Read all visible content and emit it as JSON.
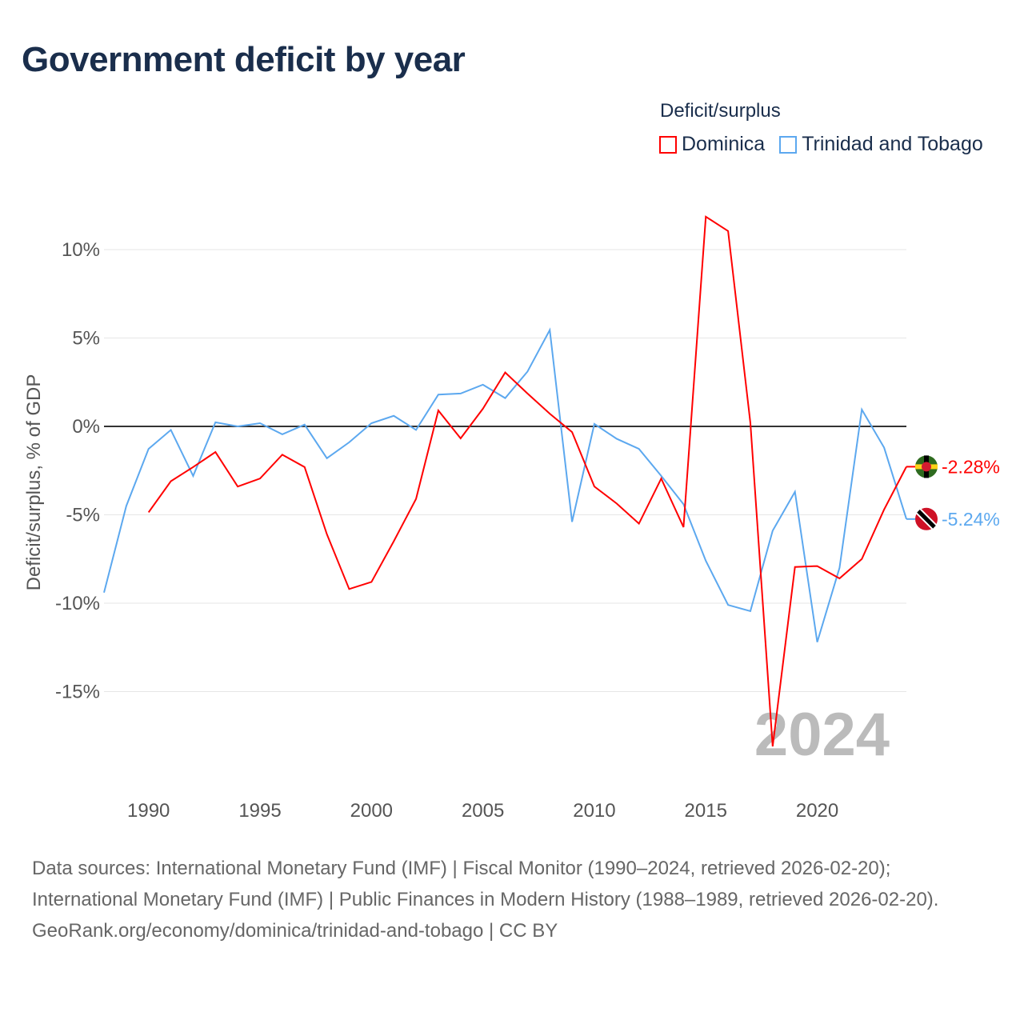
{
  "title": "Government deficit by year",
  "legend": {
    "title": "Deficit/surplus",
    "items": [
      "Dominica",
      "Trinidad and Tobago"
    ]
  },
  "footer": {
    "sources": "Data sources: International Monetary Fund (IMF) | Fiscal Monitor (1990–2024, retrieved 2026-02-20); International Monetary Fund (IMF) | Public Finances in Modern History (1988–1989, retrieved 2026-02-20).",
    "credit": "GeoRank.org/economy/dominica/trinidad-and-tobago | CC BY"
  },
  "chart_data": {
    "type": "line",
    "title": "Government deficit by year",
    "ylabel": "Deficit/surplus, % of GDP",
    "xlabel": "",
    "xlim": [
      1988,
      2024
    ],
    "ylim": [
      -20.5,
      12.8
    ],
    "yticks": [
      10,
      5,
      0,
      -5,
      -10,
      -15
    ],
    "ytick_labels": [
      "10%",
      "5%",
      "0%",
      "-5%",
      "-10%",
      "-15%"
    ],
    "xticks": [
      1990,
      1995,
      2000,
      2005,
      2010,
      2015,
      2020
    ],
    "xtick_labels": [
      "1990",
      "1995",
      "2000",
      "2005",
      "2010",
      "2015",
      "2020"
    ],
    "year_watermark": "2024",
    "series": [
      {
        "name": "Dominica",
        "color": "#ff0000",
        "end_label": "-2.28%",
        "x": [
          1990,
          1991,
          1992,
          1993,
          1994,
          1995,
          1996,
          1997,
          1998,
          1999,
          2000,
          2001,
          2002,
          2003,
          2004,
          2005,
          2006,
          2007,
          2008,
          2009,
          2010,
          2011,
          2012,
          2013,
          2014,
          2015,
          2016,
          2017,
          2018,
          2019,
          2020,
          2021,
          2022,
          2023,
          2024
        ],
        "values": [
          -4.86,
          -3.1,
          -2.3,
          -1.45,
          -3.4,
          -2.95,
          -1.6,
          -2.3,
          -6.1,
          -9.2,
          -8.8,
          -6.5,
          -4.1,
          0.9,
          -0.68,
          1.0,
          3.05,
          1.86,
          0.72,
          -0.32,
          -3.4,
          -4.36,
          -5.5,
          -2.95,
          -5.7,
          11.86,
          11.05,
          0.2,
          -18.1,
          -7.95,
          -7.9,
          -8.6,
          -7.5,
          -4.7,
          -2.28
        ]
      },
      {
        "name": "Trinidad and Tobago",
        "color": "#5ca8ef",
        "end_label": "-5.24%",
        "x": [
          1988,
          1989,
          1990,
          1991,
          1992,
          1993,
          1994,
          1995,
          1996,
          1997,
          1998,
          1999,
          2000,
          2001,
          2002,
          2003,
          2004,
          2005,
          2006,
          2007,
          2008,
          2009,
          2010,
          2011,
          2012,
          2013,
          2014,
          2015,
          2016,
          2017,
          2018,
          2019,
          2020,
          2021,
          2022,
          2023,
          2024
        ],
        "values": [
          -9.4,
          -4.5,
          -1.27,
          -0.2,
          -2.8,
          0.23,
          0,
          0.18,
          -0.45,
          0.1,
          -1.8,
          -0.9,
          0.18,
          0.6,
          -0.2,
          1.8,
          1.86,
          2.36,
          1.6,
          3.1,
          5.45,
          -5.4,
          0.14,
          -0.7,
          -1.27,
          -2.8,
          -4.4,
          -7.6,
          -10.1,
          -10.45,
          -5.9,
          -3.7,
          -12.2,
          -8.0,
          0.95,
          -1.2,
          -5.24
        ]
      }
    ]
  }
}
